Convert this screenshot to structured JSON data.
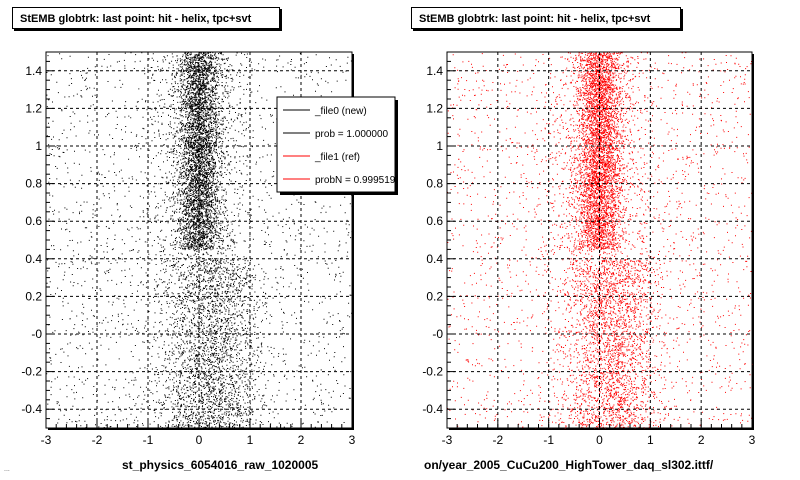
{
  "footer_stamp": "...",
  "chart_data": [
    {
      "type": "scatter",
      "title": "StEMB globtrk: last point: hit - helix, tpc+svt",
      "xlabel": "st_physics_6054016_raw_1020005",
      "ylabel": "",
      "xlim": [
        -3,
        3
      ],
      "ylim": [
        -0.5,
        1.5
      ],
      "x_ticks": [
        "-3",
        "-2",
        "-1",
        "0",
        "1",
        "2",
        "3"
      ],
      "y_ticks": [
        "-0.4",
        "-0.2",
        "-0",
        "0.2",
        "0.4",
        "0.6",
        "0.8",
        "1",
        "1.2",
        "1.4"
      ],
      "grid": true,
      "series": [
        {
          "name": "_file0 (new)",
          "color": "#000000",
          "distribution": "points concentrated near x = 0, densest at y 0.5 to 1.5"
        }
      ],
      "legend": {
        "placement": "top-right",
        "entries": [
          {
            "label": "_file0 (new)",
            "color": "#000000"
          },
          {
            "label": "prob = 1.000000",
            "color": "#000000"
          },
          {
            "label": "_file1 (ref)",
            "color": "#ff0000"
          },
          {
            "label": "probN = 0.999519",
            "color": "#ff0000"
          }
        ]
      }
    },
    {
      "type": "scatter",
      "title": "StEMB globtrk: last point: hit - helix, tpc+svt",
      "xlabel": "on/year_2005_CuCu200_HighTower_daq_sl302.ittf/",
      "ylabel": "",
      "xlim": [
        -3,
        3
      ],
      "ylim": [
        -0.5,
        1.5
      ],
      "x_ticks": [
        "-3",
        "-2",
        "-1",
        "0",
        "1",
        "2",
        "3"
      ],
      "y_ticks": [
        "-0.4",
        "-0.2",
        "-0",
        "0.2",
        "0.4",
        "0.6",
        "0.8",
        "1",
        "1.2",
        "1.4"
      ],
      "grid": true,
      "series": [
        {
          "name": "_file1 (ref)",
          "color": "#ff0000",
          "distribution": "points concentrated near x = 0, densest at y 0.5 to 1.5"
        }
      ]
    }
  ]
}
